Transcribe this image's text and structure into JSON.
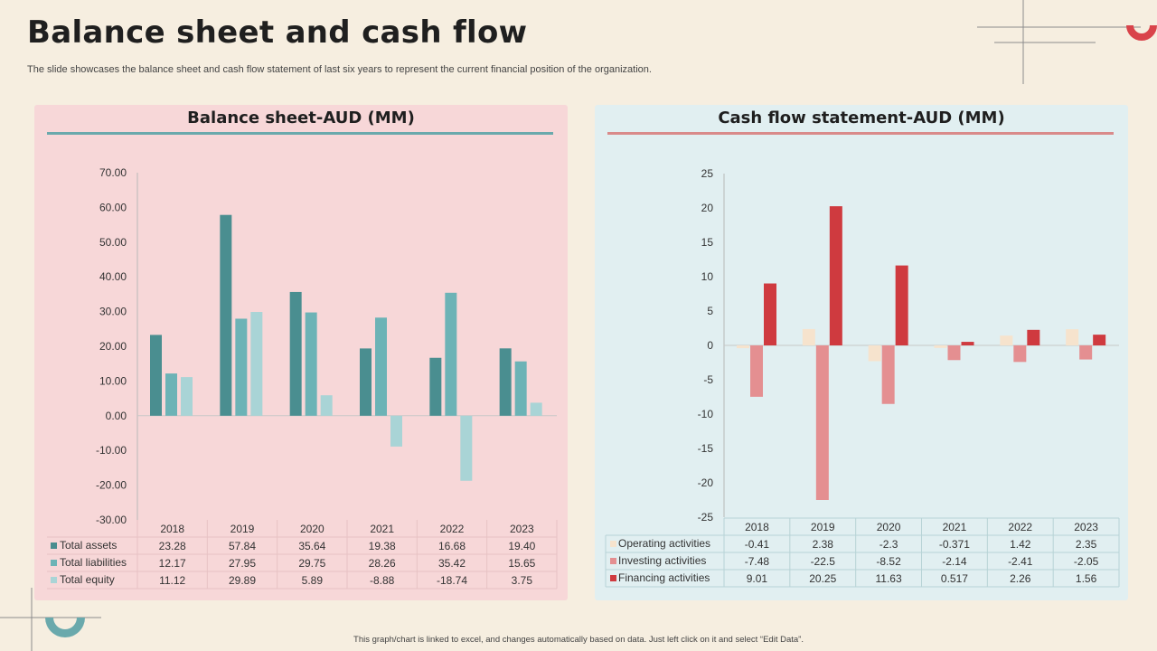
{
  "header": {
    "title": "Balance sheet and cash flow",
    "subtitle": "The slide showcases the balance sheet and cash flow statement of last six years to  represent the current financial position of the organization."
  },
  "footer": "This graph/chart is linked to excel, and changes automatically based on data. Just left click on it and select “Edit Data”.",
  "colors": {
    "assets": "#4a8e90",
    "liabilities": "#6cb3b6",
    "equity": "#a9d4d6",
    "operating": "#f6e3cd",
    "investing": "#e48f91",
    "financing": "#cf3a3f"
  },
  "chart_data": [
    {
      "type": "bar",
      "title": "Balance sheet-AUD (MM)",
      "categories": [
        "2018",
        "2019",
        "2020",
        "2021",
        "2022",
        "2023"
      ],
      "ylim": [
        -30,
        70
      ],
      "yticks": [
        "70.00",
        "60.00",
        "50.00",
        "40.00",
        "30.00",
        "20.00",
        "10.00",
        "0.00",
        "-10.00",
        "-20.00",
        "-30.00"
      ],
      "series": [
        {
          "name": "Total assets",
          "color": "#4a8e90",
          "values": [
            23.28,
            57.84,
            35.64,
            19.38,
            16.68,
            19.4
          ],
          "labels": [
            "23.28",
            "57.84",
            "35.64",
            "19.38",
            "16.68",
            "19.40"
          ]
        },
        {
          "name": "Total liabilities",
          "color": "#6cb3b6",
          "values": [
            12.17,
            27.95,
            29.75,
            28.26,
            35.42,
            15.65
          ],
          "labels": [
            "12.17",
            "27.95",
            "29.75",
            "28.26",
            "35.42",
            "15.65"
          ]
        },
        {
          "name": "Total equity",
          "color": "#a9d4d6",
          "values": [
            11.12,
            29.89,
            5.89,
            -8.88,
            -18.74,
            3.75
          ],
          "labels": [
            "11.12",
            "29.89",
            "5.89",
            "-8.88",
            "-18.74",
            "3.75"
          ]
        }
      ]
    },
    {
      "type": "bar",
      "title": "Cash flow statement-AUD (MM)",
      "categories": [
        "2018",
        "2019",
        "2020",
        "2021",
        "2022",
        "2023"
      ],
      "ylim": [
        -25,
        25
      ],
      "yticks": [
        "25",
        "20",
        "15",
        "10",
        "5",
        "0",
        "-5",
        "-10",
        "-15",
        "-20",
        "-25"
      ],
      "series": [
        {
          "name": "Operating activities",
          "color": "#f6e3cd",
          "values": [
            -0.41,
            2.38,
            -2.3,
            -0.371,
            1.42,
            2.35
          ],
          "labels": [
            "-0.41",
            "2.38",
            "-2.3",
            "-0.371",
            "1.42",
            "2.35"
          ]
        },
        {
          "name": "Investing activities",
          "color": "#e48f91",
          "values": [
            -7.48,
            -22.5,
            -8.52,
            -2.14,
            -2.41,
            -2.05
          ],
          "labels": [
            "-7.48",
            "-22.5",
            "-8.52",
            "-2.14",
            "-2.41",
            "-2.05"
          ]
        },
        {
          "name": "Financing activities",
          "color": "#cf3a3f",
          "values": [
            9.01,
            20.25,
            11.63,
            0.517,
            2.26,
            1.56
          ],
          "labels": [
            "9.01",
            "20.25",
            "11.63",
            "0.517",
            "2.26",
            "1.56"
          ]
        }
      ]
    }
  ]
}
